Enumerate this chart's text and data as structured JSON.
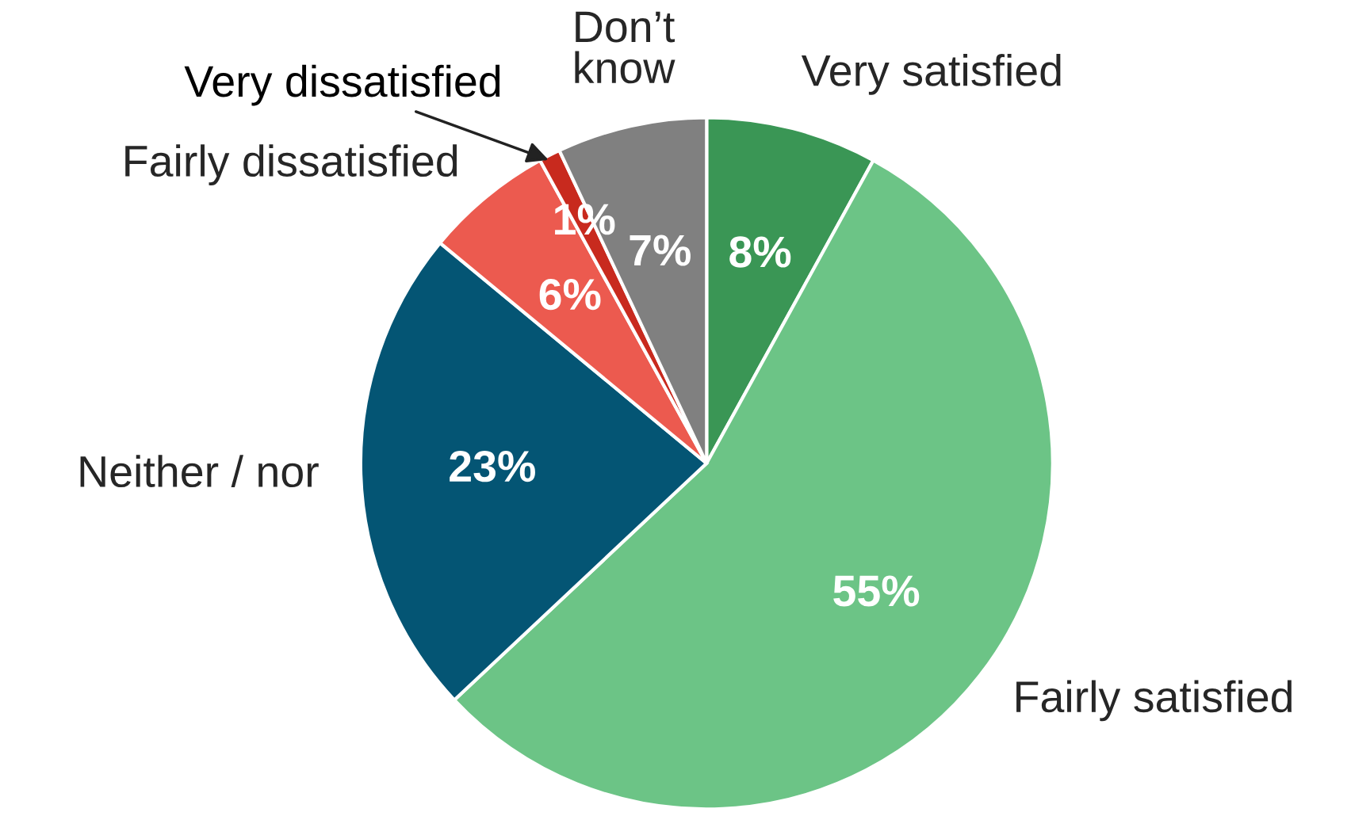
{
  "chart_data": {
    "type": "pie",
    "categories": [
      "Very satisfied",
      "Fairly satisfied",
      "Neither / nor",
      "Fairly dissatisfied",
      "Very dissatisfied",
      "Don’t\nknow"
    ],
    "values": [
      8,
      55,
      23,
      6,
      1,
      7
    ],
    "value_labels": [
      "8%",
      "55%",
      "23%",
      "6%",
      "1%",
      "7%"
    ],
    "colors": [
      "#3a9655",
      "#6cc486",
      "#045574",
      "#ec5a4f",
      "#c82a1e",
      "#808080"
    ]
  }
}
